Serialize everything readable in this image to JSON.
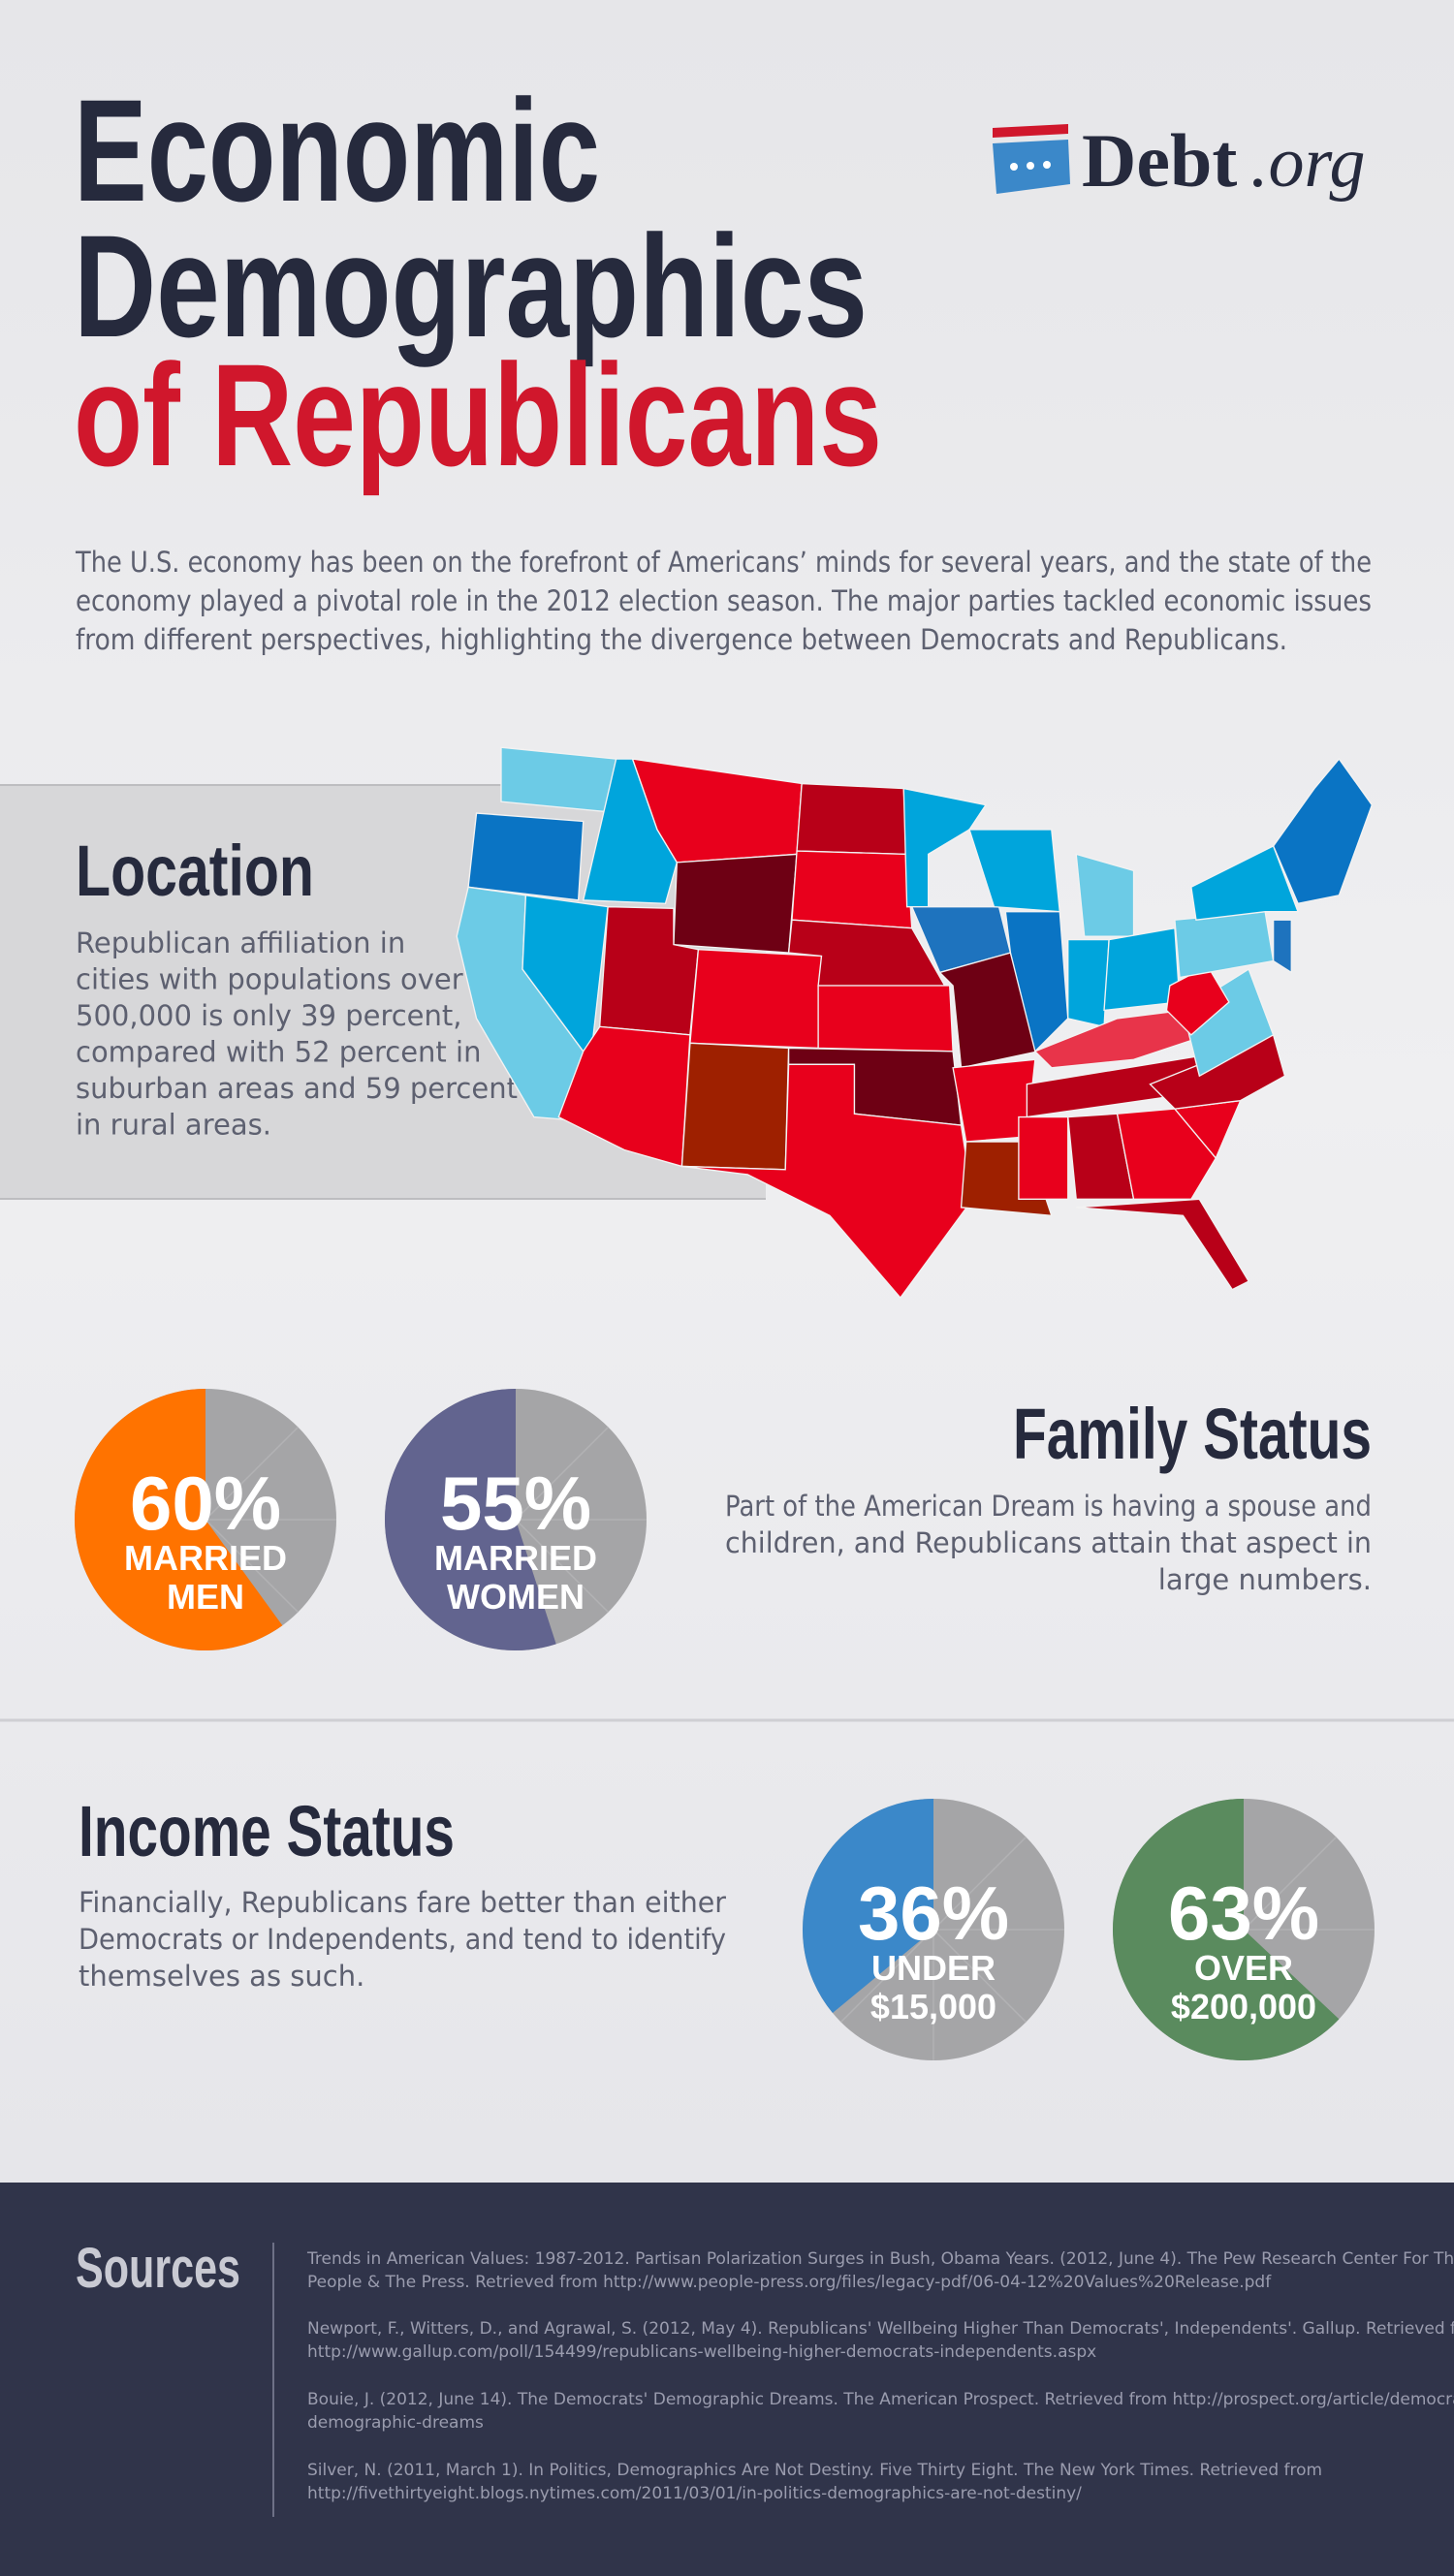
{
  "header": {
    "title_lines": [
      "Economic",
      "Demographics",
      "of Republicans"
    ],
    "logo_main": "Debt",
    "logo_suffix": ".org"
  },
  "intro": [
    "The U.S. economy has been on the forefront of Americans’ minds for several years, and the state of the",
    "economy played a pivotal role in the 2012 election season. The major parties tackled economic issues",
    "from different perspectives, highlighting the divergence between Democrats and Republicans."
  ],
  "location": {
    "title": "Location",
    "lines": [
      "Republican affiliation in",
      "cities with populations over",
      "500,000 is only 39 percent,",
      "compared with 52 percent in",
      "suburban areas and 59 percent",
      "in rural areas."
    ]
  },
  "family_status": {
    "title": "Family Status",
    "lines": [
      "Part of the American Dream is having a spouse and",
      "children, and Republicans attain that aspect in",
      "large numbers."
    ],
    "pies": [
      {
        "value": 60,
        "value_label": "60%",
        "label": [
          "MARRIED",
          "MEN"
        ],
        "color": "#ff7300"
      },
      {
        "value": 55,
        "value_label": "55%",
        "label": [
          "MARRIED",
          "WOMEN"
        ],
        "color": "#62648f"
      }
    ]
  },
  "income_status": {
    "title": "Income Status",
    "lines": [
      "Financially, Republicans fare better than either",
      "Democrats or Independents, and tend to identify",
      "themselves as such."
    ],
    "pies": [
      {
        "value": 36,
        "value_label": "36%",
        "label": [
          "UNDER",
          "$15,000"
        ],
        "color": "#3b88c9"
      },
      {
        "value": 63,
        "value_label": "63%",
        "label": [
          "OVER",
          "$200,000"
        ],
        "color": "#5a8b5e"
      }
    ]
  },
  "sources": {
    "title": "Sources",
    "items": [
      [
        "Trends in American Values: 1987-2012. Partisan Polarization Surges in Bush, Obama Years. (2012, June 4). The Pew Research Center For The",
        "People & The Press. Retrieved from http://www.people-press.org/files/legacy-pdf/06-04-12%20Values%20Release.pdf"
      ],
      [
        "Newport, F., Witters, D., and Agrawal, S. (2012, May 4). Republicans' Wellbeing Higher Than Democrats', Independents'. Gallup. Retrieved from",
        "http://www.gallup.com/poll/154499/republicans-wellbeing-higher-democrats-independents.aspx"
      ],
      [
        "Bouie, J. (2012, June 14). The Democrats' Demographic Dreams. The American Prospect. Retrieved from http://prospect.org/article/democrats-",
        "demographic-dreams"
      ],
      [
        "Silver, N. (2011, March 1). In Politics, Demographics Are Not Destiny. Five Thirty Eight. The New York Times. Retrieved from",
        "http://fivethirtyeight.blogs.nytimes.com/2011/03/01/in-politics-demographics-are-not-destiny/"
      ]
    ]
  }
}
